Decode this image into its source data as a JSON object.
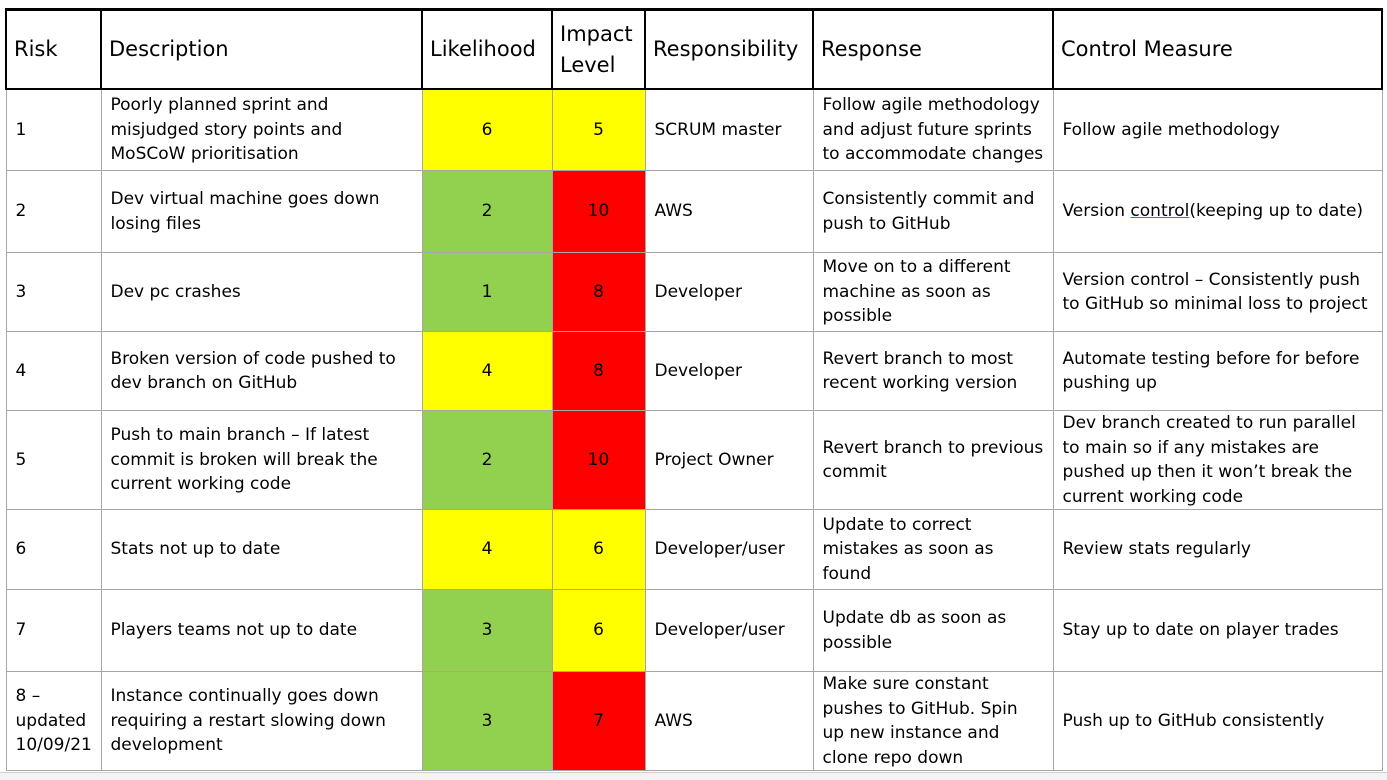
{
  "colors": {
    "green": "#92d050",
    "yellow": "#ffff00",
    "red": "#ff0000",
    "white": "#ffffff"
  },
  "headers": {
    "risk": "Risk",
    "description": "Description",
    "likelihood": "Likelihood",
    "impact": "Impact Level",
    "responsibility": "Responsibility",
    "response": "Response",
    "control": "Control Measure"
  },
  "rows": [
    {
      "risk": "1",
      "description": "Poorly planned sprint and misjudged story points and MoSCoW prioritisation",
      "likelihood": "6",
      "likelihood_color": "yellow",
      "impact": "5",
      "impact_color": "yellow",
      "responsibility": "SCRUM master",
      "response": "Follow agile methodology and adjust future sprints to accommodate changes",
      "control": "Follow agile methodology"
    },
    {
      "risk": "2",
      "description": "Dev virtual machine goes down losing files",
      "likelihood": "2",
      "likelihood_color": "green",
      "impact": "10",
      "impact_color": "red",
      "responsibility": "AWS",
      "response": "Consistently commit and push to GitHub",
      "control_prefix": "Version ",
      "control_underlined": "control",
      "control_suffix": "(keeping up to date)"
    },
    {
      "risk": "3",
      "description": "Dev pc crashes",
      "likelihood": "1",
      "likelihood_color": "green",
      "impact": "8",
      "impact_color": "red",
      "responsibility": "Developer",
      "response": "Move on to a different machine as soon as possible",
      "control": "Version control – Consistently push to GitHub so minimal loss to project"
    },
    {
      "risk": "4",
      "description": "Broken version of code pushed to dev branch on GitHub",
      "likelihood": "4",
      "likelihood_color": "yellow",
      "impact": "8",
      "impact_color": "red",
      "responsibility": "Developer",
      "response": "Revert branch to most recent working version",
      "control": "Automate testing before for before pushing up"
    },
    {
      "risk": "5",
      "description": "Push to main branch – If latest commit is broken will break the current working code",
      "likelihood": "2",
      "likelihood_color": "green",
      "impact": "10",
      "impact_color": "red",
      "responsibility": "Project Owner",
      "response": "Revert branch to previous commit",
      "control": "Dev branch created to run parallel to main so if any mistakes are pushed up then it won’t break the current working code"
    },
    {
      "risk": "6",
      "description": "Stats not up to date",
      "likelihood": "4",
      "likelihood_color": "yellow",
      "impact": "6",
      "impact_color": "yellow",
      "responsibility": "Developer/user",
      "response": "Update to correct mistakes as soon as found",
      "control": "Review stats regularly"
    },
    {
      "risk": "7",
      "description": "Players teams not up to date",
      "likelihood": "3",
      "likelihood_color": "green",
      "impact": "6",
      "impact_color": "yellow",
      "responsibility": "Developer/user",
      "response": "Update db as soon as possible",
      "control": "Stay up to date on player trades"
    },
    {
      "risk": "8 – updated 10/09/21",
      "description": "Instance continually goes down requiring a restart slowing down development",
      "likelihood": "3",
      "likelihood_color": "green",
      "impact": "7",
      "impact_color": "red",
      "responsibility": "AWS",
      "response": "Make sure constant pushes to GitHub. Spin up new instance and clone repo down",
      "control": "Push up to GitHub consistently"
    }
  ]
}
